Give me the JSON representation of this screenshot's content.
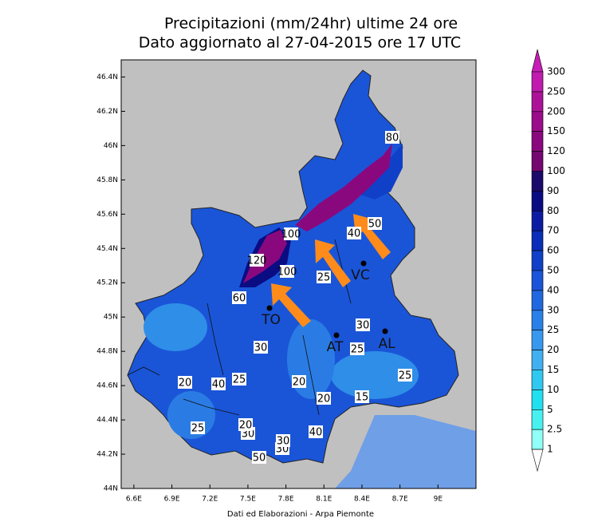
{
  "map": {
    "title": [
      "Precipitazioni (mm/24hr) ultime 24 ore",
      "Dato aggiornato al 27-04-2015 ore 17 UTC"
    ],
    "lonlim": [
      6.5,
      9.3
    ],
    "latlim": [
      44,
      46.5
    ],
    "lat_ticks": [
      {
        "value": 46.4,
        "label": "46.4N"
      },
      {
        "value": 46.2,
        "label": "46.2N"
      },
      {
        "value": 46,
        "label": "46N"
      },
      {
        "value": 45.8,
        "label": "45.8N"
      },
      {
        "value": 45.6,
        "label": "45.6N"
      },
      {
        "value": 45.4,
        "label": "45.4N"
      },
      {
        "value": 45.2,
        "label": "45.2N"
      },
      {
        "value": 45,
        "label": "45N"
      },
      {
        "value": 44.8,
        "label": "44.8N"
      },
      {
        "value": 44.6,
        "label": "44.6N"
      },
      {
        "value": 44.4,
        "label": "44.4N"
      },
      {
        "value": 44.2,
        "label": "44.2N"
      },
      {
        "value": 44,
        "label": "44N"
      }
    ],
    "lon_ticks": [
      {
        "value": 6.6,
        "label": "6.6E"
      },
      {
        "value": 6.9,
        "label": "6.9E"
      },
      {
        "value": 7.2,
        "label": "7.2E"
      },
      {
        "value": 7.5,
        "label": "7.5E"
      },
      {
        "value": 7.8,
        "label": "7.8E"
      },
      {
        "value": 8.1,
        "label": "8.1E"
      },
      {
        "value": 8.4,
        "label": "8.4E"
      },
      {
        "value": 8.7,
        "label": "8.7E"
      },
      {
        "value": 9,
        "label": "9E"
      }
    ],
    "colorbar": {
      "levels": [
        300,
        250,
        200,
        150,
        120,
        100,
        90,
        80,
        70,
        60,
        50,
        40,
        30,
        25,
        20,
        15,
        10,
        5,
        2.5,
        1
      ],
      "colors": [
        "#c81cb8",
        "#c01aae",
        "#ac1298",
        "#9a0c8a",
        "#8a087e",
        "#760670",
        "#1c0a6a",
        "#0a0c82",
        "#0c1ca2",
        "#0a2eb8",
        "#1040c8",
        "#1a54d8",
        "#2068e0",
        "#2a80e8",
        "#3898f0",
        "#40b0f0",
        "#30c8f0",
        "#20e0f0",
        "#48f0f0",
        "#90fff8",
        "#ffffff"
      ]
    },
    "cities": [
      "TO",
      "AT",
      "AL",
      "VC"
    ],
    "contour_labels": [
      "80",
      "100",
      "50",
      "40",
      "120",
      "100",
      "25",
      "60",
      "30",
      "30",
      "25",
      "20",
      "40",
      "25",
      "20",
      "20",
      "15",
      "25",
      "25",
      "30",
      "20",
      "30",
      "40",
      "30",
      "50"
    ],
    "footer": "Dati ed Elaborazioni - Arpa Piemonte"
  }
}
